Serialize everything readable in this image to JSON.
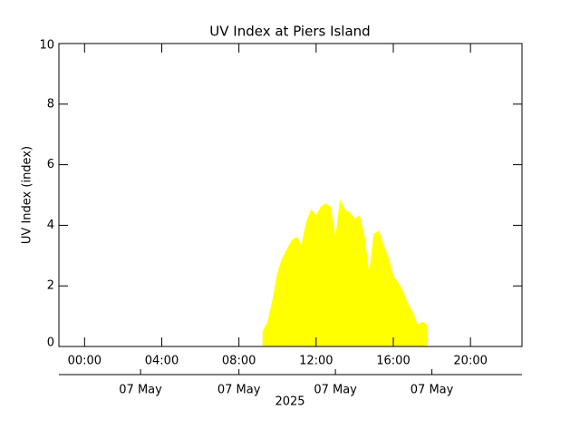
{
  "chart_data": {
    "type": "area",
    "title": "UV Index at Piers Island",
    "ylabel": "UV Index (index)",
    "xlabel": "2025",
    "color": "#ffff00",
    "x": [
      9.25,
      9.5,
      9.75,
      10,
      10.25,
      10.5,
      10.75,
      11,
      11.25,
      11.5,
      11.75,
      12,
      12.25,
      12.5,
      12.75,
      13,
      13.25,
      13.5,
      13.75,
      14,
      14.25,
      14.5,
      14.75,
      15,
      15.25,
      15.5,
      15.75,
      16,
      16.25,
      16.5,
      16.75,
      17,
      17.25,
      17.5,
      17.75
    ],
    "values": [
      0.5,
      0.8,
      1.5,
      2.4,
      2.9,
      3.2,
      3.5,
      3.6,
      3.3,
      4.1,
      4.5,
      4.3,
      4.6,
      4.7,
      4.6,
      3.5,
      4.8,
      4.5,
      4.4,
      4.2,
      4.3,
      3.6,
      2.3,
      3.7,
      3.8,
      3.3,
      2.9,
      2.3,
      2.1,
      1.8,
      1.4,
      1.1,
      0.7,
      0.8,
      0.7
    ],
    "xlim": [
      -1.33,
      22.67
    ],
    "xticks": [
      {
        "value": 0,
        "label": "00:00"
      },
      {
        "value": 4,
        "label": "04:00"
      },
      {
        "value": 8,
        "label": "08:00"
      },
      {
        "value": 12,
        "label": "12:00"
      },
      {
        "value": 16,
        "label": "16:00"
      },
      {
        "value": 20,
        "label": "20:00"
      }
    ],
    "date_ticks": [
      {
        "value": 2.9,
        "label": "07 May"
      },
      {
        "value": 8,
        "label": "07 May"
      },
      {
        "value": 13,
        "label": "07 May"
      },
      {
        "value": 18,
        "label": "07 May"
      }
    ],
    "ylim": [
      0,
      10
    ],
    "yticks": [
      0,
      2,
      4,
      6,
      8,
      10
    ]
  }
}
